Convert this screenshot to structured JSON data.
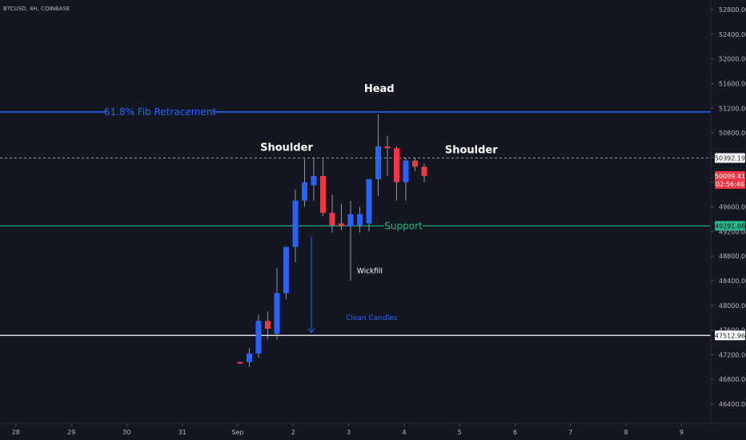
{
  "header": {
    "symbol": "BTCUSD, 4H, COINBASE"
  },
  "colors": {
    "background": "#131722",
    "bull": "#2962ff",
    "bear": "#f23645",
    "fib": "#2962ff",
    "support": "#2bb586",
    "resistance": "#ffffff",
    "axis_text": "#b2b5be",
    "price_badge": "#f23645"
  },
  "chart_data": {
    "type": "candlestick",
    "ylim": [
      46200,
      53000
    ],
    "y_ticks": [
      46400,
      46800,
      47200,
      47600,
      48000,
      48400,
      48800,
      49200,
      49600,
      50000,
      50400,
      50800,
      51200,
      51600,
      52000,
      52400,
      52800
    ],
    "y_tick_labels": [
      "46400.00",
      "46800.00",
      "47200.00",
      "47600.00",
      "48000.00",
      "48400.00",
      "48800.00",
      "49200.00",
      "49600.00",
      "50000.00",
      "50400.00",
      "50800.00",
      "51200.00",
      "51600.00",
      "52000.00",
      "52400.00",
      "52800.00"
    ],
    "x_ticks": [
      {
        "label": "28",
        "day": -4
      },
      {
        "label": "29",
        "day": -3
      },
      {
        "label": "30",
        "day": -2
      },
      {
        "label": "31",
        "day": -1
      },
      {
        "label": "Sep",
        "day": 0
      },
      {
        "label": "2",
        "day": 1
      },
      {
        "label": "3",
        "day": 2
      },
      {
        "label": "4",
        "day": 3
      },
      {
        "label": "5",
        "day": 4
      },
      {
        "label": "6",
        "day": 5
      },
      {
        "label": "7",
        "day": 6
      },
      {
        "label": "8",
        "day": 7
      },
      {
        "label": "9",
        "day": 8
      }
    ],
    "candles": [
      {
        "o": 47080,
        "h": 47090,
        "l": 47050,
        "c": 47060
      },
      {
        "o": 47080,
        "h": 47300,
        "l": 47000,
        "c": 47220
      },
      {
        "o": 47220,
        "h": 47850,
        "l": 47150,
        "c": 47750
      },
      {
        "o": 47750,
        "h": 47900,
        "l": 47450,
        "c": 47620
      },
      {
        "o": 47540,
        "h": 48600,
        "l": 47450,
        "c": 48200
      },
      {
        "o": 48200,
        "h": 48950,
        "l": 48100,
        "c": 48950
      },
      {
        "o": 48950,
        "h": 49880,
        "l": 48700,
        "c": 49700
      },
      {
        "o": 49700,
        "h": 50380,
        "l": 49600,
        "c": 50000
      },
      {
        "o": 49950,
        "h": 50400,
        "l": 49700,
        "c": 50100
      },
      {
        "o": 50100,
        "h": 50380,
        "l": 49450,
        "c": 49500
      },
      {
        "o": 49500,
        "h": 49800,
        "l": 49180,
        "c": 49300
      },
      {
        "o": 49330,
        "h": 49650,
        "l": 49220,
        "c": 49290
      },
      {
        "o": 49280,
        "h": 49700,
        "l": 48400,
        "c": 49480
      },
      {
        "o": 49300,
        "h": 49600,
        "l": 49180,
        "c": 49480
      },
      {
        "o": 49330,
        "h": 50050,
        "l": 49200,
        "c": 50050
      },
      {
        "o": 50050,
        "h": 51100,
        "l": 49780,
        "c": 50580
      },
      {
        "o": 50580,
        "h": 50750,
        "l": 50100,
        "c": 50550
      },
      {
        "o": 50550,
        "h": 50580,
        "l": 49700,
        "c": 50000
      },
      {
        "o": 50000,
        "h": 50400,
        "l": 49700,
        "c": 50350
      },
      {
        "o": 50350,
        "h": 50400,
        "l": 50180,
        "c": 50250
      },
      {
        "o": 50250,
        "h": 50300,
        "l": 50000,
        "c": 50100
      }
    ],
    "levels": [
      {
        "name": "fib",
        "price": 51140,
        "label": "61.8% Fib Retracement"
      },
      {
        "name": "support",
        "price": 49291.06,
        "label": "Support",
        "badge": "49291.06"
      },
      {
        "name": "resistance",
        "price": 47512.96,
        "badge": "47512.96"
      },
      {
        "name": "neckline",
        "price": 50392.19,
        "badge": "50392.19",
        "dashed": true
      }
    ],
    "current_price": {
      "price": 50099.41,
      "value": "50099.41",
      "countdown": "02:56:46"
    },
    "annotations": [
      {
        "name": "head",
        "text": "Head",
        "day": 2.55,
        "price": 51460
      },
      {
        "name": "left-shoulder",
        "text": "Shoulder",
        "day": 0.88,
        "price": 50510
      },
      {
        "name": "right-shoulder",
        "text": "Shoulder",
        "day": 4.21,
        "price": 50470
      },
      {
        "name": "wickfill",
        "text": "Wickfill",
        "day": 2.38,
        "price": 48520
      },
      {
        "name": "clean-candles",
        "text": "Clean Candles",
        "day": 1.95,
        "price": 47760
      }
    ]
  }
}
